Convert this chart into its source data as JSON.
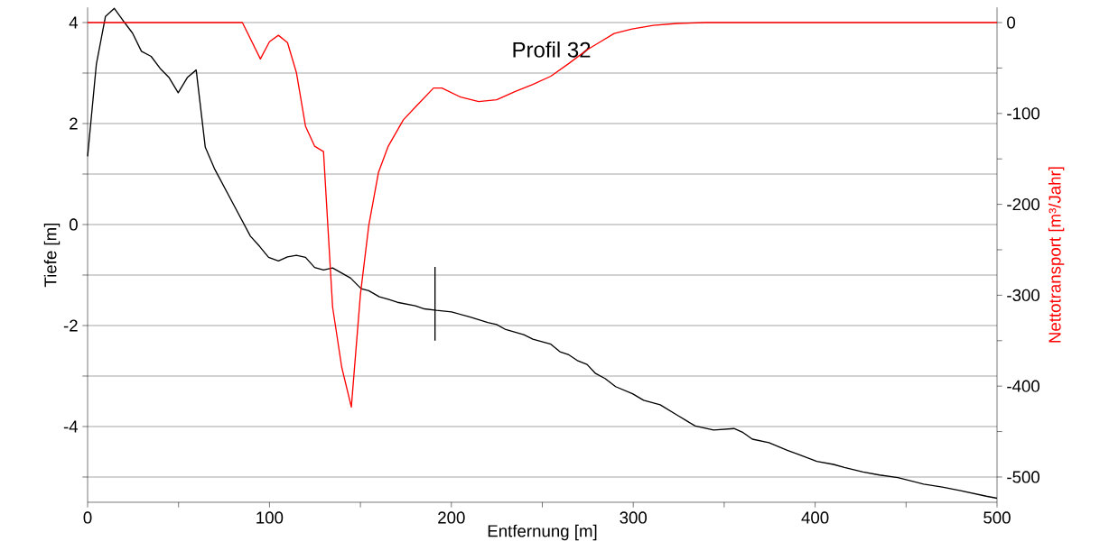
{
  "chart_data": {
    "type": "line",
    "title": "Profil 32",
    "xlabel": "Entfernung [m]",
    "ylabel": "Tiefe [m]",
    "y2label": "Nettotransport [m³/Jahr]",
    "xlim": [
      0,
      500
    ],
    "xticks": [
      0,
      {
        "value": 50,
        "label": null
      },
      100,
      {
        "value": 150,
        "label": null
      },
      200,
      {
        "value": 250,
        "label": null
      },
      300,
      {
        "value": 350,
        "label": null
      },
      400,
      {
        "value": 450,
        "label": null
      },
      500
    ],
    "ylim": [
      -5.5,
      4.3
    ],
    "yticks": [
      {
        "value": -5,
        "label": null
      },
      -4,
      {
        "value": -3,
        "label": null
      },
      -2,
      {
        "value": -1,
        "label": null
      },
      0,
      {
        "value": 1,
        "label": null
      },
      2,
      {
        "value": 3,
        "label": null
      },
      4
    ],
    "y2lim": [
      -527.8,
      16.7
    ],
    "y2ticks": [
      -500,
      {
        "value": -450,
        "label": null
      },
      -400,
      {
        "value": -350,
        "label": null
      },
      -300,
      {
        "value": -250,
        "label": null
      },
      -200,
      {
        "value": -150,
        "label": null
      },
      -100,
      {
        "value": -50,
        "label": null
      },
      0
    ],
    "grid": "y",
    "marker": "none",
    "line_style": "solid",
    "series": [
      {
        "color": "#000000",
        "x": [
          0,
          4.8,
          9.8,
          14.7,
          19.7,
          24.7,
          29.6,
          34.9,
          39.9,
          44.8,
          49.8,
          54.8,
          59.7,
          64.7,
          69.7,
          89.5,
          94.5,
          99.5,
          104.9,
          109.9,
          114.8,
          119.8,
          124.8,
          129.7,
          134.7,
          144.6,
          150.4,
          154.6,
          160.4,
          165.3,
          170.3,
          180.2,
          185.2,
          191.8,
          200.1,
          210,
          220,
          224.9,
          229.9,
          239.8,
          244.8,
          254.7,
          259.7,
          264.6,
          269.6,
          274.6,
          279.3,
          284.5,
          290.3,
          299.6,
          305.7,
          314.8,
          324.9,
          334.1,
          344.2,
          355.4,
          360.4,
          365.5,
          374.6,
          384.7,
          390.8,
          400.9,
          410.1,
          416.1,
          426.3,
          435.4,
          445.5,
          459.7,
          469.9,
          480,
          494.1,
          500
        ],
        "values": [
          1.35,
          3.17,
          4.12,
          4.28,
          4.03,
          3.79,
          3.43,
          3.33,
          3.09,
          2.91,
          2.61,
          2.91,
          3.06,
          1.53,
          1.11,
          -0.23,
          -0.43,
          -0.65,
          -0.72,
          -0.64,
          -0.61,
          -0.65,
          -0.85,
          -0.9,
          -0.86,
          -1.06,
          -1.27,
          -1.31,
          -1.43,
          -1.48,
          -1.54,
          -1.61,
          -1.67,
          -1.7,
          -1.73,
          -1.83,
          -1.94,
          -1.98,
          -2.08,
          -2.18,
          -2.27,
          -2.37,
          -2.52,
          -2.58,
          -2.7,
          -2.77,
          -2.95,
          -3.05,
          -3.21,
          -3.35,
          -3.48,
          -3.57,
          -3.79,
          -3.99,
          -4.07,
          -4.04,
          -4.12,
          -4.25,
          -4.32,
          -4.47,
          -4.55,
          -4.69,
          -4.75,
          -4.81,
          -4.9,
          -4.96,
          -5.01,
          -5.14,
          -5.2,
          -5.27,
          -5.38,
          -5.42
        ]
      },
      {
        "color": "#ff0000",
        "axis": "y2",
        "x": [
          0,
          85.1,
          95,
          100,
          104.9,
          109.9,
          114.8,
          119.8,
          124.8,
          129.7,
          134.7,
          139.7,
          145,
          150,
          154.6,
          159.9,
          165.3,
          173.6,
          180.2,
          190.2,
          194.8,
          205.1,
          215,
          224.9,
          234.9,
          244.8,
          254.7,
          264.6,
          274.6,
          281.2,
          289.5,
          299.4,
          311,
          324.2,
          340,
          500
        ],
        "values": [
          0,
          0,
          -40,
          -21,
          -14,
          -22,
          -55,
          -114,
          -136,
          -142,
          -313,
          -379,
          -423,
          -299,
          -223,
          -165,
          -136,
          -107,
          -93,
          -72,
          -72,
          -82,
          -87,
          -85,
          -76,
          -68,
          -59,
          -45,
          -30,
          -22,
          -12,
          -7,
          -3,
          -1,
          0,
          0
        ]
      },
      {
        "color": "#000000",
        "x": [
          191,
          191
        ],
        "values": [
          -0.84,
          -2.3
        ]
      }
    ]
  }
}
